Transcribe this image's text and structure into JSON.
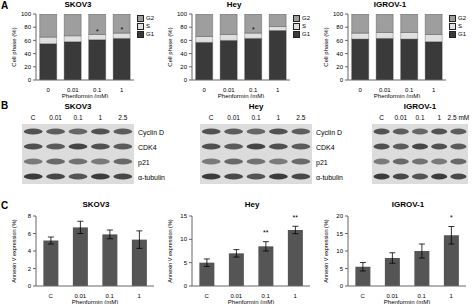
{
  "panel_labels": [
    "A",
    "B",
    "C"
  ],
  "chart_data": [
    {
      "type": "bar",
      "stacked": true,
      "title": "SKOV3",
      "x_label": "Phenformin (mM)",
      "y_label": "Cell phase (%)",
      "categories": [
        "0",
        "0.01",
        "0.1",
        "1"
      ],
      "series": [
        {
          "name": "G1",
          "color": "#3a3a3a",
          "values": [
            55,
            58,
            61,
            63
          ]
        },
        {
          "name": "S",
          "color": "#e0e0e0",
          "values": [
            10,
            9,
            8,
            8
          ]
        },
        {
          "name": "G2",
          "color": "#9e9e9e",
          "values": [
            35,
            33,
            31,
            29
          ]
        }
      ],
      "ylim": [
        0,
        100
      ],
      "yticks": [
        0,
        20,
        40,
        60,
        80,
        100
      ],
      "legend": "right",
      "annotations": [
        {
          "x": "0.1",
          "y": 61,
          "text": "*"
        },
        {
          "x": "1",
          "y": 63,
          "text": "*"
        }
      ]
    },
    {
      "type": "bar",
      "stacked": true,
      "title": "Hey",
      "x_label": "Phenformin (mM)",
      "y_label": "Cell phase (%)",
      "categories": [
        "0",
        "0.01",
        "0.1",
        "1"
      ],
      "series": [
        {
          "name": "G1",
          "color": "#3a3a3a",
          "values": [
            57,
            60,
            63,
            75
          ]
        },
        {
          "name": "S",
          "color": "#e0e0e0",
          "values": [
            9,
            9,
            8,
            6
          ]
        },
        {
          "name": "G2",
          "color": "#9e9e9e",
          "values": [
            34,
            31,
            29,
            19
          ]
        }
      ],
      "ylim": [
        0,
        100
      ],
      "yticks": [
        0,
        20,
        40,
        60,
        80,
        100
      ],
      "legend": "right",
      "annotations": [
        {
          "x": "0.1",
          "y": 63,
          "text": "*"
        }
      ]
    },
    {
      "type": "bar",
      "stacked": true,
      "title": "IGROV-1",
      "x_label": "Phenformin (mM)",
      "y_label": "Cell phase (%)",
      "categories": [
        "0",
        "0.01",
        "0.1",
        "1"
      ],
      "series": [
        {
          "name": "G1",
          "color": "#3a3a3a",
          "values": [
            62,
            63,
            62,
            58
          ]
        },
        {
          "name": "S",
          "color": "#e0e0e0",
          "values": [
            9,
            9,
            10,
            11
          ]
        },
        {
          "name": "G2",
          "color": "#9e9e9e",
          "values": [
            29,
            28,
            28,
            31
          ]
        }
      ],
      "ylim": [
        0,
        100
      ],
      "yticks": [
        0,
        20,
        40,
        60,
        80,
        100
      ],
      "legend": "right",
      "annotations": []
    },
    {
      "type": "bar",
      "title": "SKOV3",
      "x_label": "Phenformin (mM)",
      "y_label": "Annexin V expression (%)",
      "categories": [
        "C",
        "0.01",
        "0.1",
        "1"
      ],
      "values": [
        5.2,
        6.7,
        5.9,
        5.3
      ],
      "errors": [
        0.4,
        0.7,
        0.5,
        1.0
      ],
      "color": "#555555",
      "ylim": [
        0,
        8
      ],
      "yticks": [
        0,
        2,
        4,
        6,
        8
      ],
      "annotations": []
    },
    {
      "type": "bar",
      "title": "Hey",
      "x_label": "Phenformin (mM)",
      "y_label": "Annexin V expression (%)",
      "categories": [
        "C",
        "0.01",
        "0.1",
        "1"
      ],
      "values": [
        5,
        7,
        8.5,
        12
      ],
      "errors": [
        0.8,
        0.8,
        1,
        0.8
      ],
      "color": "#555555",
      "ylim": [
        0,
        15
      ],
      "yticks": [
        0,
        5,
        10,
        15
      ],
      "annotations": [
        {
          "x": "0.1",
          "y": 9.6,
          "text": "**"
        },
        {
          "x": "1",
          "y": 12.9,
          "text": "**"
        }
      ]
    },
    {
      "type": "bar",
      "title": "IGROV-1",
      "x_label": "Phenformin (mM)",
      "y_label": "Annexin V expression (%)",
      "categories": [
        "C",
        "0.01",
        "0.1",
        "1"
      ],
      "values": [
        5.5,
        8,
        10,
        14.5
      ],
      "errors": [
        1.2,
        1.5,
        2,
        2.5
      ],
      "color": "#555555",
      "ylim": [
        0,
        20
      ],
      "yticks": [
        0,
        5,
        10,
        15,
        20
      ],
      "annotations": [
        {
          "x": "1",
          "y": 17.1,
          "text": "*"
        }
      ]
    }
  ],
  "blots": [
    {
      "title": "SKOV3",
      "lanes": [
        "C",
        "0.01",
        "0.1",
        "1",
        "2.5"
      ],
      "row_labels": [
        "Cyclin D",
        "CDK4",
        "p21",
        "α-tubulin"
      ]
    },
    {
      "title": "Hey",
      "lanes": [
        "C",
        "0.01",
        "0.1",
        "1",
        "2.5"
      ],
      "row_labels": [
        "Cyclin D",
        "CDK4",
        "p21",
        "α-tubulin"
      ]
    },
    {
      "title": "IGROV-1",
      "lanes": [
        "C",
        "0.01",
        "0.1",
        "1",
        "2.5"
      ],
      "unit": "mM"
    }
  ]
}
